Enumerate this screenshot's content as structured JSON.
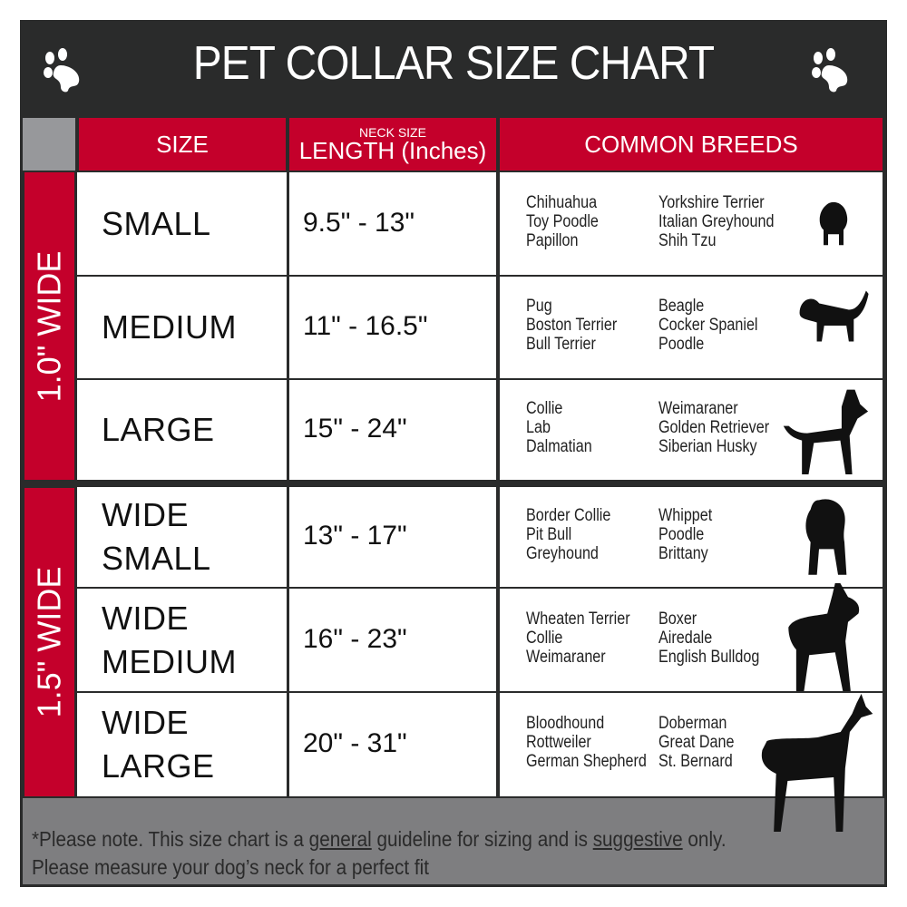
{
  "title": "PET COLLAR SIZE CHART",
  "headers": {
    "size": "SIZE",
    "length_small": "NECK SIZE",
    "length": "LENGTH (Inches)",
    "breeds": "COMMON BREEDS"
  },
  "groups": [
    {
      "label": "1.0\" WIDE"
    },
    {
      "label": "1.5\" WIDE"
    }
  ],
  "rows": [
    {
      "size": [
        "SMALL"
      ],
      "length": "9.5\" - 13\"",
      "breeds1": [
        "Chihuahua",
        "Toy Poodle",
        "Papillon"
      ],
      "breeds2": [
        "Yorkshire Terrier",
        "Italian Greyhound",
        "Shih Tzu"
      ]
    },
    {
      "size": [
        "MEDIUM"
      ],
      "length": "11\" - 16.5\"",
      "breeds1": [
        "Pug",
        "Boston Terrier",
        "Bull Terrier"
      ],
      "breeds2": [
        "Beagle",
        "Cocker Spaniel",
        "Poodle"
      ]
    },
    {
      "size": [
        "LARGE"
      ],
      "length": "15\" - 24\"",
      "breeds1": [
        "Collie",
        "Lab",
        "Dalmatian"
      ],
      "breeds2": [
        "Weimaraner",
        "Golden Retriever",
        "Siberian Husky"
      ]
    },
    {
      "size": [
        "WIDE",
        "SMALL"
      ],
      "length": "13\" - 17\"",
      "breeds1": [
        "Border Collie",
        "Pit Bull",
        "Greyhound"
      ],
      "breeds2": [
        "Whippet",
        "Poodle",
        "Brittany"
      ]
    },
    {
      "size": [
        "WIDE",
        "MEDIUM"
      ],
      "length": "16\" - 23\"",
      "breeds1": [
        "Wheaten Terrier",
        "Collie",
        "Weimaraner"
      ],
      "breeds2": [
        "Boxer",
        "Airedale",
        "English Bulldog"
      ]
    },
    {
      "size": [
        "WIDE",
        "LARGE"
      ],
      "length": "20\" - 31\"",
      "breeds1": [
        "Bloodhound",
        "Rottweiler",
        "German Shepherd"
      ],
      "breeds2": [
        "Doberman",
        "Great Dane",
        "St. Bernard"
      ]
    }
  ],
  "footer": {
    "p1": "*Please note. This size chart is a",
    "u1": "general",
    "p2": " guideline for sizing and is",
    "u2": "suggestive",
    "p3": " only.",
    "line2": "Please measure your dog’s neck for a perfect fit"
  },
  "colors": {
    "header_bg": "#2a2b2b",
    "accent_red": "#c4002b",
    "footer_bg": "#7e7e80"
  }
}
